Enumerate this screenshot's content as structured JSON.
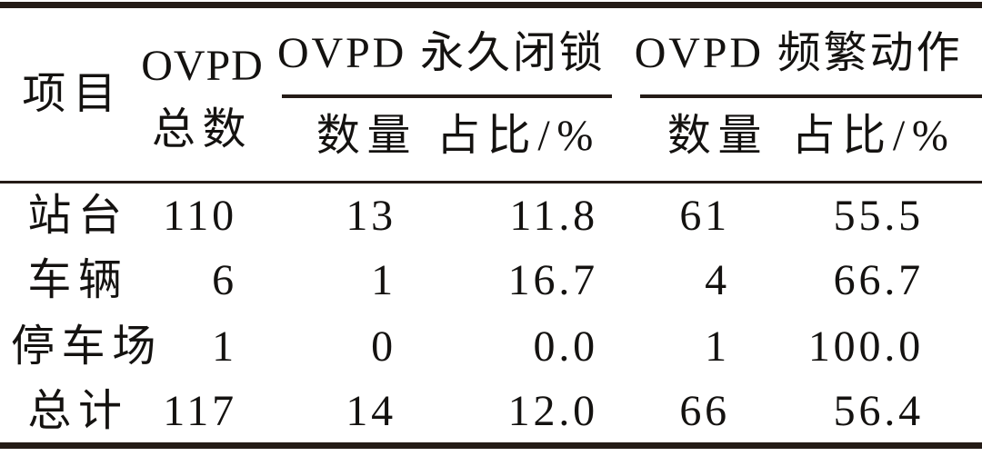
{
  "page": {
    "background": "#ffffff"
  },
  "colors": {
    "rule_ink": "#241b16",
    "text_ink": "#141210"
  },
  "table": {
    "header": {
      "item": "项目",
      "ovpd_total_line1": "OVPD",
      "ovpd_total_line2": "总数",
      "group_permanent": "OVPD 永久闭锁",
      "group_frequent": "OVPD 频繁动作",
      "count": "数量",
      "ratio": "占比/%"
    },
    "rows": [
      {
        "item": "站台",
        "total": "110",
        "perm_count": "13",
        "perm_ratio": "11.8",
        "freq_count": "61",
        "freq_ratio": "55.5"
      },
      {
        "item": "车辆",
        "total": "6",
        "perm_count": "1",
        "perm_ratio": "16.7",
        "freq_count": "4",
        "freq_ratio": "66.7"
      },
      {
        "item": "停车场",
        "total": "1",
        "perm_count": "0",
        "perm_ratio": "0.0",
        "freq_count": "1",
        "freq_ratio": "100.0"
      },
      {
        "item": "总计",
        "total": "117",
        "perm_count": "14",
        "perm_ratio": "12.0",
        "freq_count": "66",
        "freq_ratio": "56.4"
      }
    ]
  }
}
